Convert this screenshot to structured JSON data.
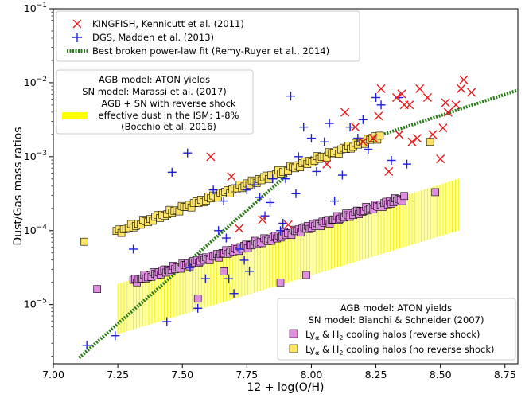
{
  "chart_data": {
    "type": "scatter",
    "xlabel": "12 + log(O/H)",
    "ylabel": "Dust/Gas mass ratios",
    "xlim": [
      7.0,
      8.8
    ],
    "ylim_log10": [
      -5.8,
      -1.0
    ],
    "y_scale": "log",
    "x_ticks": [
      "7.00",
      "7.25",
      "7.50",
      "7.75",
      "8.00",
      "8.25",
      "8.50",
      "8.75"
    ],
    "x_tick_values": [
      7.0,
      7.25,
      7.5,
      7.75,
      8.0,
      8.25,
      8.5,
      8.75
    ],
    "y_tick_exponents": [
      -5,
      -4,
      -3,
      -2,
      -1
    ],
    "legend_top": {
      "placement": "top-left",
      "entries": [
        {
          "label": "KINGFISH, Kennicutt et al. (2011)",
          "marker": "x",
          "color": "#e41a1c"
        },
        {
          "label": "DGS, Madden et al. (2013)",
          "marker": "+",
          "color": "#1f1fd6"
        },
        {
          "label": "Best broken power-law fit (Remy-Ruyer et al., 2014)",
          "marker": "dotted-line",
          "color": "#2a7a1a"
        }
      ]
    },
    "legend_middle": {
      "placement": "upper-left",
      "title_line1": "AGB model: ATON yields",
      "title_line2": "SN model: Marassi et al. (2017)",
      "band_label_line1": "AGB + SN with reverse shock",
      "band_label_line2": "effective dust in the ISM: 1-8%",
      "band_label_line3": "(Bocchio et al. 2016)",
      "band_color": "#ffff00"
    },
    "legend_bottom": {
      "placement": "lower-right",
      "title_line1": "AGB model: ATON yields",
      "title_line2": "SN model: Bianchi & Schneider (2007)",
      "entry1_prefix": "Ly",
      "entry1_sub": "α",
      "entry1_rest": " & H",
      "entry1_sub2": "2",
      "entry1_suffix": " cooling halos (reverse shock)",
      "entry2_prefix": "Ly",
      "entry2_sub": "α",
      "entry2_rest": " & H",
      "entry2_sub2": "2",
      "entry2_suffix": " cooling halos (no reverse shock)",
      "color_rs": "#e08ee0",
      "color_nors": "#ffe566"
    },
    "band": {
      "x": [
        7.25,
        8.57
      ],
      "upper_log10": [
        -4.72,
        -3.3
      ],
      "lower_log10": [
        -5.4,
        -4.0
      ]
    },
    "broken_powerlaw_fit": {
      "x_break": 7.97,
      "x": [
        7.1,
        7.97,
        8.8
      ],
      "y_log10": [
        -5.72,
        -3.05,
        -2.1
      ]
    },
    "kingfish": {
      "x": [
        7.61,
        7.69,
        7.72,
        7.81,
        7.91,
        8.06,
        8.13,
        8.17,
        8.2,
        8.24,
        8.26,
        8.27,
        8.3,
        8.33,
        8.34,
        8.35,
        8.36,
        8.38,
        8.39,
        8.41,
        8.42,
        8.45,
        8.47,
        8.5,
        8.51,
        8.52,
        8.53,
        8.56,
        8.58,
        8.59,
        8.62
      ],
      "y_log10": [
        -3.0,
        -3.27,
        -3.97,
        -3.85,
        -3.92,
        -3.1,
        -2.4,
        -2.6,
        -2.8,
        -2.75,
        -2.45,
        -2.08,
        -3.2,
        -2.2,
        -2.7,
        -2.15,
        -2.3,
        -2.3,
        -2.8,
        -2.75,
        -2.08,
        -2.2,
        -2.7,
        -3.03,
        -2.61,
        -2.27,
        -2.4,
        -2.3,
        -2.08,
        -1.96,
        -2.13
      ]
    },
    "dgs": {
      "x": [
        7.13,
        7.24,
        7.31,
        7.44,
        7.46,
        7.52,
        7.53,
        7.56,
        7.59,
        7.62,
        7.64,
        7.66,
        7.67,
        7.68,
        7.7,
        7.72,
        7.74,
        7.75,
        7.76,
        7.78,
        7.8,
        7.82,
        7.84,
        7.85,
        7.88,
        7.89,
        7.9,
        7.92,
        7.94,
        7.95,
        7.97,
        8.0,
        8.02,
        8.05,
        8.07,
        8.09,
        8.12,
        8.15,
        8.18,
        8.2,
        8.22,
        8.25,
        8.27,
        8.31,
        8.34,
        8.37
      ],
      "y_log10": [
        -5.55,
        -5.42,
        -4.25,
        -5.23,
        -3.21,
        -2.95,
        -4.5,
        -5.05,
        -4.65,
        -3.45,
        -4.0,
        -3.6,
        -4.1,
        -4.65,
        -4.85,
        -4.25,
        -4.4,
        -3.45,
        -4.55,
        -3.38,
        -3.55,
        -3.8,
        -3.62,
        -3.3,
        -4.0,
        -3.9,
        -3.3,
        -2.18,
        -3.5,
        -3.0,
        -2.6,
        -2.75,
        -3.2,
        -2.8,
        -2.55,
        -3.6,
        -3.25,
        -2.6,
        -2.75,
        -2.5,
        -2.9,
        -2.2,
        -2.3,
        -3.05,
        -2.2,
        -3.1
      ]
    },
    "model_no_reverse_shock": {
      "x_start": 7.245,
      "x_end": 8.265,
      "n": 110,
      "y_log10_start": -4.02,
      "y_log10_end": -2.72,
      "extra_x": [
        7.12,
        8.46
      ],
      "extra_y_log10": [
        -4.15,
        -2.8
      ]
    },
    "model_reverse_shock": {
      "x_start": 7.31,
      "x_end": 8.36,
      "n": 150,
      "y_log10_start": -4.68,
      "y_log10_end": -3.56,
      "extra_x": [
        7.17,
        7.56,
        7.66,
        7.88,
        7.98,
        8.48
      ],
      "extra_y_log10": [
        -4.79,
        -4.92,
        -4.55,
        -4.7,
        -4.6,
        -3.48
      ]
    }
  }
}
